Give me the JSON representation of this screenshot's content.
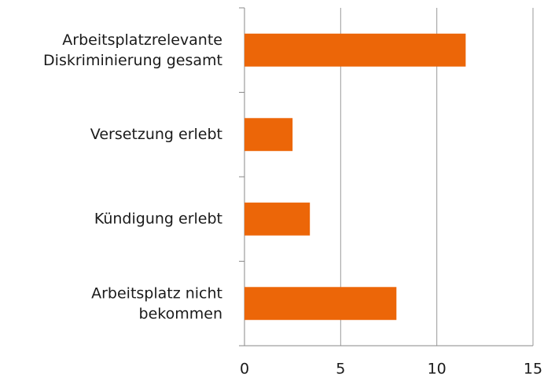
{
  "chart_data": {
    "type": "barh",
    "categories": [
      "Arbeitsplatzrelevante\nDiskriminierung gesamt",
      "Versetzung erlebt",
      "Kündigung erlebt",
      "Arbeitsplatz nicht\nbekommen"
    ],
    "values": [
      11.5,
      2.5,
      3.4,
      7.9
    ],
    "color": "#ec6608",
    "xlim": [
      0,
      15
    ],
    "xticks": [
      0,
      5,
      10,
      15
    ],
    "grid": true
  }
}
